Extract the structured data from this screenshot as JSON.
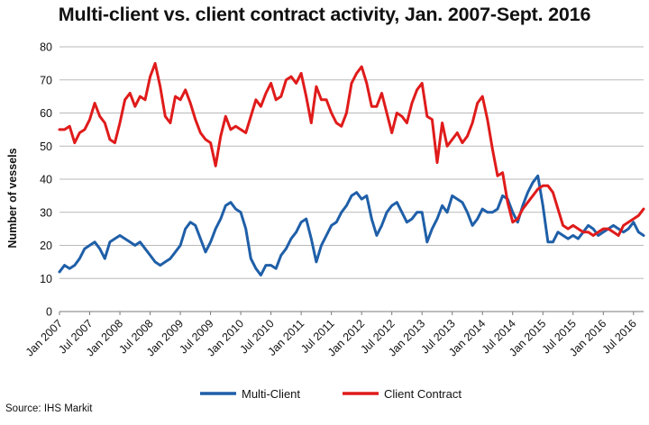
{
  "chart_data": {
    "type": "line",
    "title": "Multi-client vs. client contract activity, Jan. 2007-Sept. 2016",
    "xlabel": "",
    "ylabel": "Number of vessels",
    "ylim": [
      0,
      80
    ],
    "yticks": [
      0,
      10,
      20,
      30,
      40,
      50,
      60,
      70,
      80
    ],
    "grid": true,
    "legend_position": "bottom-center",
    "source": "Source: IHS Markit",
    "x_start": "Jan 2007",
    "x_end": "Sept 2016",
    "month_count": 117,
    "x_tick_labels": [
      "Jan 2007",
      "Jul 2007",
      "Jan 2008",
      "Jul 2008",
      "Jan 2009",
      "Jul 2009",
      "Jan 2010",
      "Jul 2010",
      "Jan 2011",
      "Jul 2011",
      "Jan 2012",
      "Jul 2012",
      "Jan 2013",
      "Jul 2013",
      "Jan 2014",
      "Jul 2014",
      "Jan 2015",
      "Jul 2015",
      "Jan 2016",
      "Jul 2016"
    ],
    "series": [
      {
        "name": "Multi-Client",
        "color": "#1f5fa8",
        "values": [
          12,
          14,
          13,
          14,
          16,
          19,
          20,
          21,
          19,
          16,
          21,
          22,
          23,
          22,
          21,
          20,
          21,
          19,
          17,
          15,
          14,
          15,
          16,
          18,
          20,
          25,
          27,
          26,
          22,
          18,
          21,
          25,
          28,
          32,
          33,
          31,
          30,
          25,
          16,
          13,
          11,
          14,
          14,
          13,
          17,
          19,
          22,
          24,
          27,
          28,
          22,
          15,
          20,
          23,
          26,
          27,
          30,
          32,
          35,
          36,
          34,
          35,
          28,
          23,
          26,
          30,
          32,
          33,
          30,
          27,
          28,
          30,
          30,
          21,
          25,
          28,
          32,
          30,
          35,
          34,
          33,
          30,
          26,
          28,
          31,
          30,
          30,
          31,
          35,
          34,
          30,
          27,
          32,
          36,
          39,
          41,
          32,
          21,
          21,
          24,
          23,
          22,
          23,
          22,
          24,
          26,
          25,
          23,
          24,
          25,
          26,
          25,
          24,
          25,
          27,
          24,
          23
        ],
        "end_value": 23
      },
      {
        "name": "Client Contract",
        "color": "#e01b1b",
        "values": [
          55,
          55,
          56,
          51,
          54,
          55,
          58,
          63,
          59,
          57,
          52,
          51,
          57,
          64,
          66,
          62,
          65,
          64,
          71,
          75,
          68,
          59,
          57,
          65,
          64,
          67,
          63,
          58,
          54,
          52,
          51,
          44,
          53,
          59,
          55,
          56,
          55,
          54,
          59,
          64,
          62,
          66,
          69,
          64,
          65,
          70,
          71,
          69,
          72,
          65,
          57,
          68,
          64,
          64,
          60,
          57,
          56,
          60,
          69,
          72,
          74,
          69,
          62,
          62,
          66,
          60,
          54,
          60,
          59,
          57,
          63,
          67,
          69,
          59,
          58,
          45,
          57,
          50,
          52,
          54,
          51,
          53,
          57,
          63,
          65,
          58,
          49,
          41,
          42,
          33,
          27,
          28,
          31,
          33,
          35,
          37,
          38,
          38,
          36,
          31,
          26,
          25,
          26,
          25,
          24,
          24,
          23,
          24,
          25,
          25,
          24,
          23,
          26,
          27,
          28,
          29,
          31
        ],
        "end_value": 31
      }
    ]
  }
}
